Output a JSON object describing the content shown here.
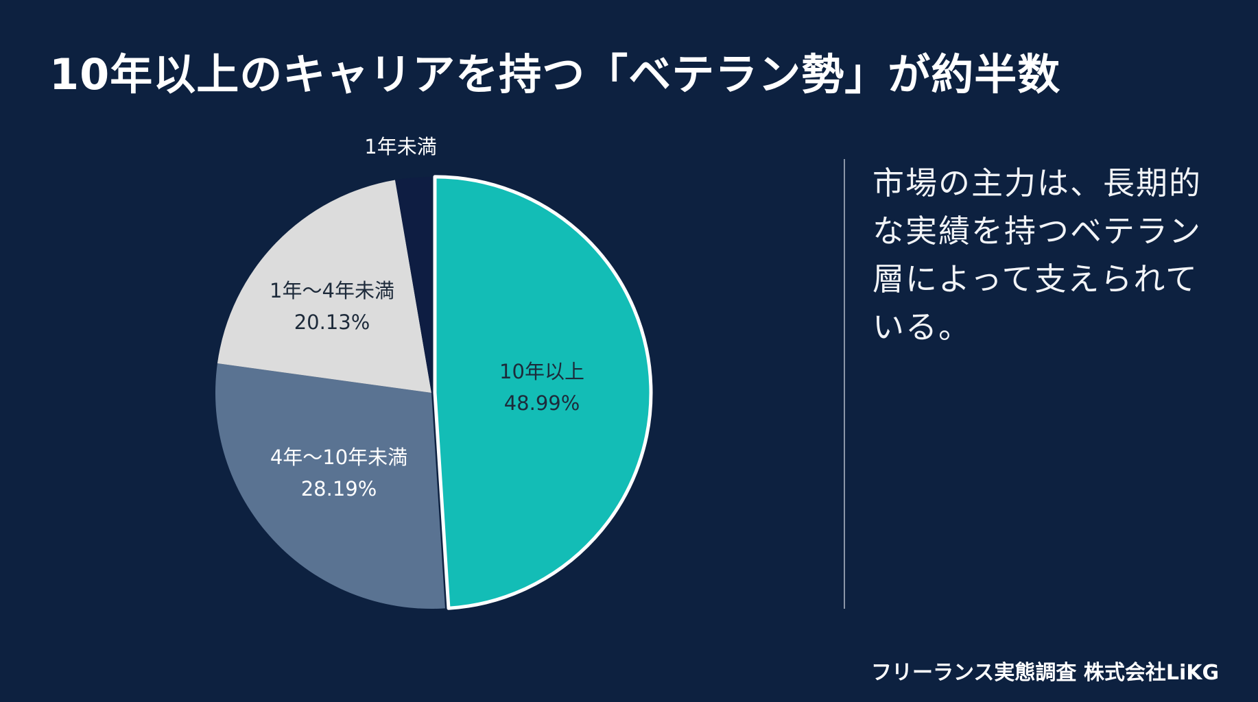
{
  "title": "10年以上のキャリアを持つ「ベテラン勢」が約半数",
  "takeaway": "市場の主力は、長期的な実績を持つベテラン層によって支えられている。",
  "source": "フリーランス実態調査 株式会社LiKG",
  "colors": {
    "background": "#0d2140",
    "veteran": "#13bdb6",
    "mid": "#5a7392",
    "junior": "#dcdcdc",
    "new": "#0e1d42",
    "outline": "#ffffff"
  },
  "chart_data": {
    "type": "pie",
    "title": "10年以上のキャリアを持つ「ベテラン勢」が約半数",
    "categories": [
      "10年以上",
      "4年〜10年未満",
      "1年〜4年未満",
      "1年未満"
    ],
    "values": [
      48.99,
      28.19,
      20.13,
      2.69
    ],
    "data_labels": [
      "48.99%",
      "28.19%",
      "20.13%",
      ""
    ],
    "highlighted": "10年以上",
    "slices": [
      {
        "category": "10年以上",
        "value": 48.99,
        "label": "48.99%",
        "color": "#13bdb6",
        "text_color": "#1d2a3a"
      },
      {
        "category": "4年〜10年未満",
        "value": 28.19,
        "label": "28.19%",
        "color": "#5a7392",
        "text_color": "#ffffff"
      },
      {
        "category": "1年〜4年未満",
        "value": 20.13,
        "label": "20.13%",
        "color": "#dcdcdc",
        "text_color": "#1d2a3a"
      },
      {
        "category": "1年未満",
        "value": 2.69,
        "label": "",
        "color": "#0e1d42",
        "text_color": "#ffffff"
      }
    ]
  }
}
